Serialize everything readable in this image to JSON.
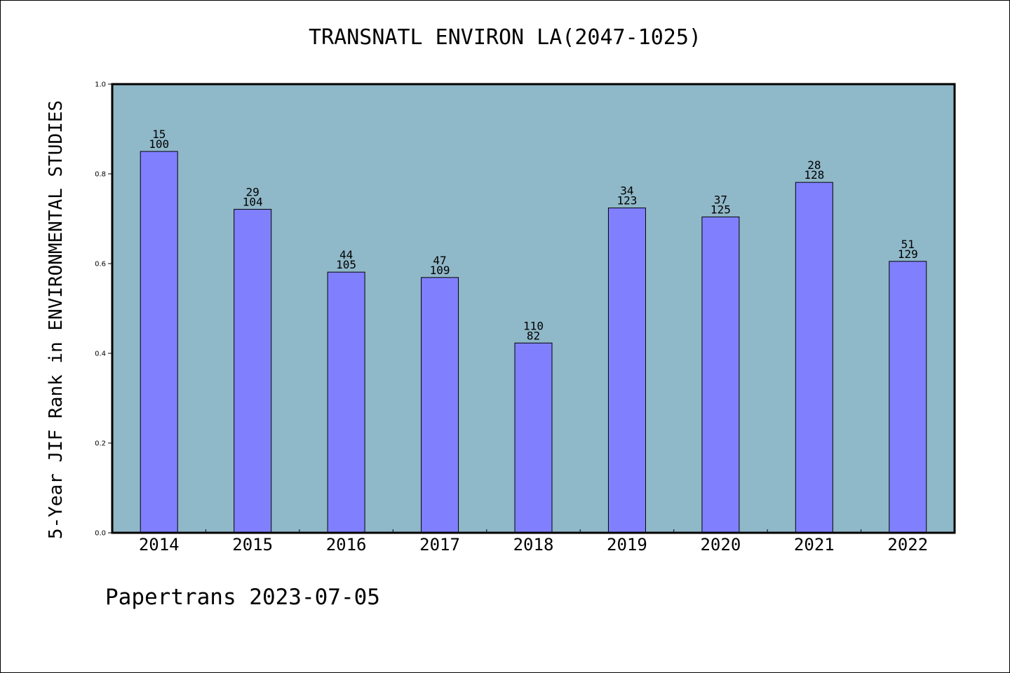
{
  "chart_data": {
    "type": "bar",
    "title": "TRANSNATL ENVIRON LA(2047-1025)",
    "ylabel": "5-Year JIF Rank in ENVIRONMENTAL STUDIES",
    "xlabel": "",
    "ylim": [
      0,
      1.0
    ],
    "yticks": [
      "0.0",
      "0.2",
      "0.4",
      "0.6",
      "0.8",
      "1.0"
    ],
    "categories": [
      "2014",
      "2015",
      "2016",
      "2017",
      "2018",
      "2019",
      "2020",
      "2021",
      "2022"
    ],
    "values": [
      0.85,
      0.721,
      0.581,
      0.569,
      0.423,
      0.724,
      0.704,
      0.781,
      0.605
    ],
    "label_top": [
      "15",
      "29",
      "44",
      "47",
      "110",
      "34",
      "37",
      "28",
      "51"
    ],
    "label_bottom": [
      "100",
      "104",
      "105",
      "109",
      "82",
      "123",
      "125",
      "128",
      "129"
    ],
    "grid": false,
    "colors": {
      "plot_bg": "#8fb8c8",
      "bar": "#8080ff",
      "bar_edge": "#000000"
    }
  },
  "footer": "Papertrans 2023-07-05"
}
